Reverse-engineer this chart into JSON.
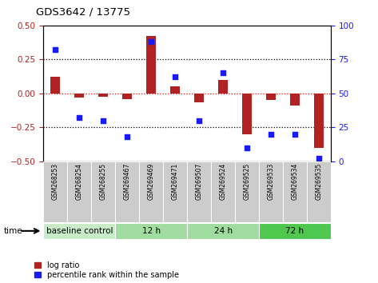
{
  "title": "GDS3642 / 13775",
  "samples": [
    "GSM268253",
    "GSM268254",
    "GSM268255",
    "GSM269467",
    "GSM269469",
    "GSM269471",
    "GSM269507",
    "GSM269524",
    "GSM269525",
    "GSM269533",
    "GSM269534",
    "GSM269535"
  ],
  "log_ratio": [
    0.12,
    -0.03,
    -0.025,
    -0.04,
    0.42,
    0.05,
    -0.065,
    0.1,
    -0.3,
    -0.05,
    -0.09,
    -0.4
  ],
  "percentile_rank": [
    82,
    32,
    30,
    18,
    88,
    62,
    30,
    65,
    10,
    20,
    20,
    2
  ],
  "bar_color": "#b22222",
  "dot_color": "#1a1aff",
  "ylim_left": [
    -0.5,
    0.5
  ],
  "ylim_right": [
    0,
    100
  ],
  "yticks_left": [
    -0.5,
    -0.25,
    0.0,
    0.25,
    0.5
  ],
  "yticks_right": [
    0,
    25,
    50,
    75,
    100
  ],
  "hlines_y": [
    0.25,
    0.0,
    -0.25
  ],
  "hline_colors": [
    "black",
    "red",
    "black"
  ],
  "groups": [
    {
      "label": "baseline control",
      "start": 0,
      "end": 3,
      "color": "#c8ecc8"
    },
    {
      "label": "12 h",
      "start": 3,
      "end": 6,
      "color": "#a0dca0"
    },
    {
      "label": "24 h",
      "start": 6,
      "end": 9,
      "color": "#a0dca0"
    },
    {
      "label": "72 h",
      "start": 9,
      "end": 12,
      "color": "#50c850"
    }
  ],
  "sample_box_color": "#cccccc",
  "time_label": "time",
  "bar_width": 0.4,
  "dot_size": 22,
  "title_fontsize": 9.5,
  "tick_fontsize": 7.5,
  "sample_fontsize": 5.5,
  "group_fontsize": 7.5,
  "legend_fontsize": 7
}
